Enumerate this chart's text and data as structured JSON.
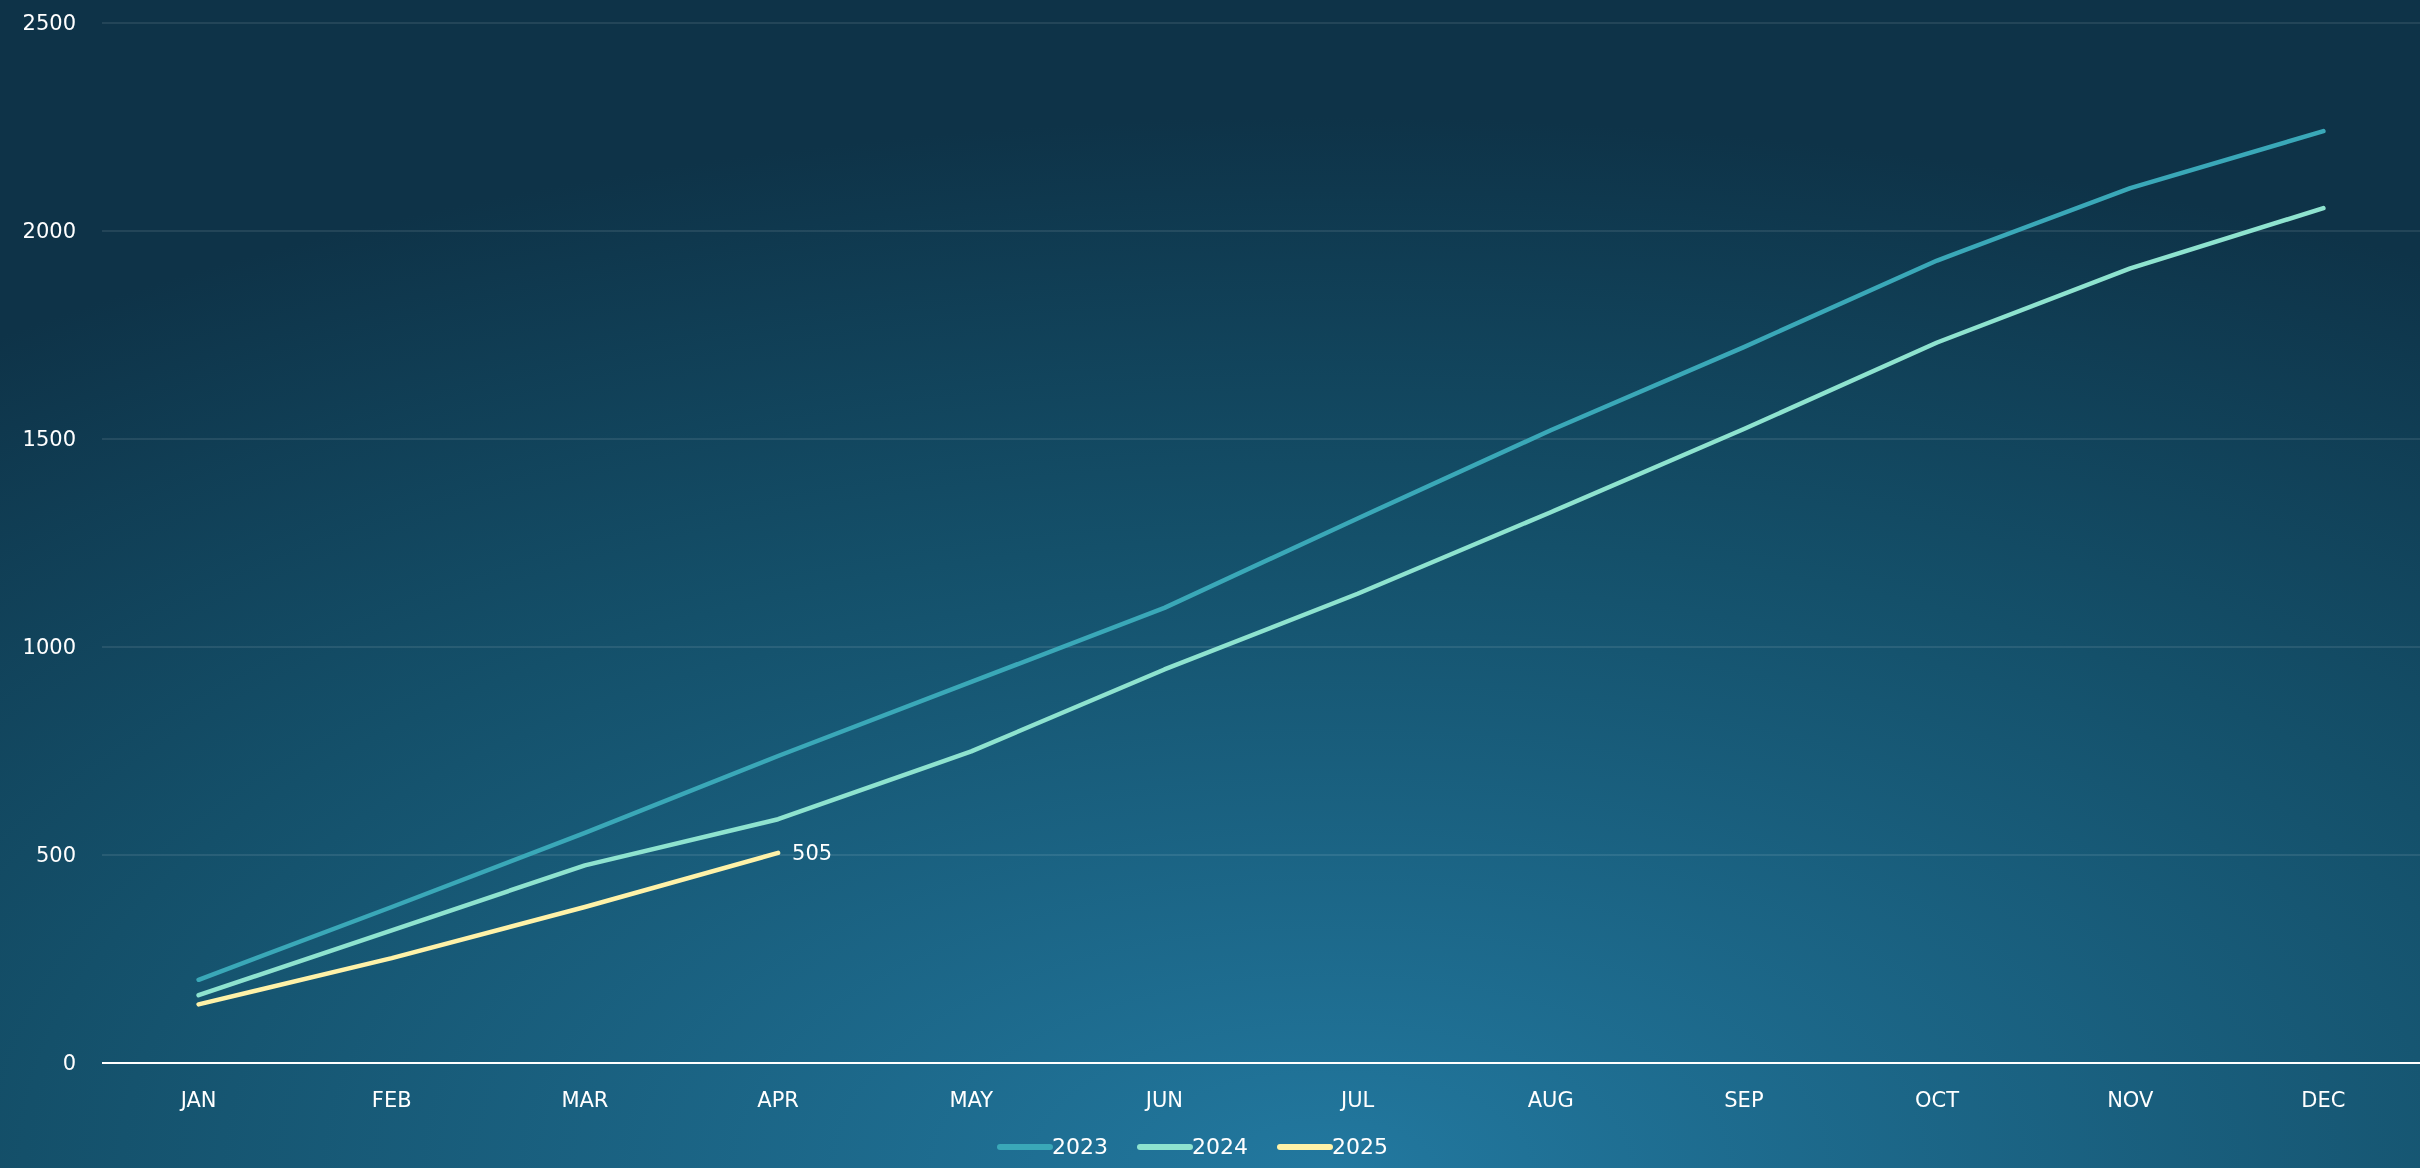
{
  "chart_data": {
    "type": "line",
    "categories": [
      "JAN",
      "FEB",
      "MAR",
      "APR",
      "MAY",
      "JUN",
      "JUL",
      "AUG",
      "SEP",
      "OCT",
      "NOV",
      "DEC"
    ],
    "series": [
      {
        "name": "2023",
        "color": "#3aa8b8",
        "values": [
          200,
          375,
          553,
          738,
          916,
          1094,
          1309,
          1521,
          1721,
          1929,
          2103,
          2240
        ]
      },
      {
        "name": "2024",
        "color": "#8ee3cf",
        "values": [
          163,
          319,
          475,
          586,
          749,
          946,
          1128,
          1324,
          1524,
          1732,
          1910,
          2055
        ]
      },
      {
        "name": "2025",
        "color": "#fff2a8",
        "values": [
          141,
          252,
          375,
          505,
          null,
          null,
          null,
          null,
          null,
          null,
          null,
          null
        ],
        "value_labels": [
          null,
          null,
          null,
          "505",
          null,
          null,
          null,
          null,
          null,
          null,
          null,
          null
        ]
      }
    ],
    "ylim": [
      0,
      2500
    ],
    "yticks": [
      0,
      500,
      1000,
      1500,
      2000,
      2500
    ],
    "grid": "y",
    "legend": "bottom",
    "marker": "none",
    "line_style": "solid"
  }
}
